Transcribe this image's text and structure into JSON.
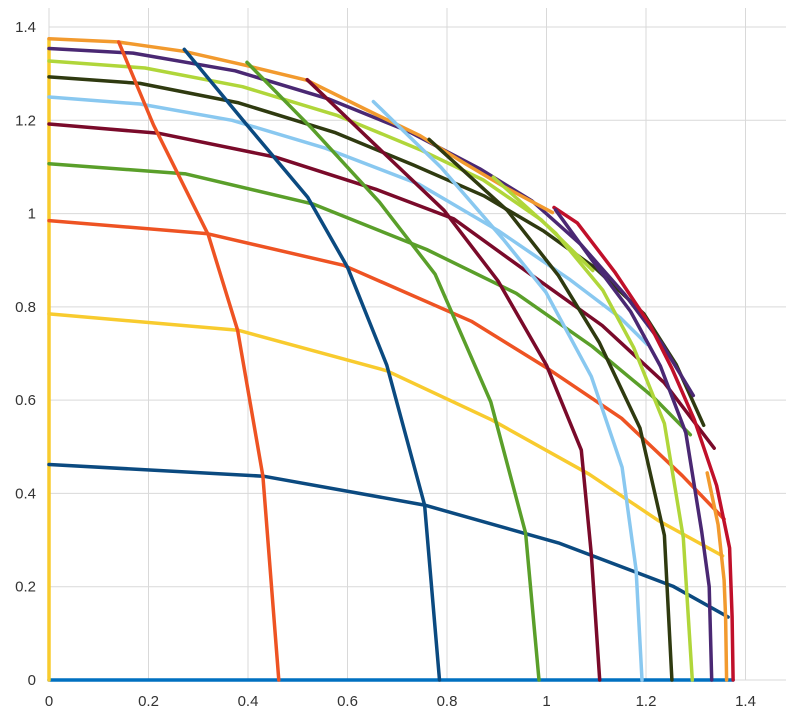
{
  "chart_data": {
    "type": "line",
    "title": "",
    "xlabel": "",
    "ylabel": "",
    "xlim": [
      0,
      1.48
    ],
    "ylim": [
      0,
      1.43
    ],
    "grid": true,
    "legend": "none",
    "x_ticks": [
      "0",
      "0.2",
      "0.4",
      "0.6",
      "0.8",
      "1",
      "1.2",
      "1.4"
    ],
    "y_ticks": [
      "0",
      "0.2",
      "0.4",
      "0.6",
      "0.8",
      "1",
      "1.2",
      "1.4"
    ],
    "series": [
      {
        "color": "#0070C0",
        "points": [
          [
            0,
            0
          ],
          [
            1.375,
            0
          ]
        ]
      },
      {
        "color": "#F8CB2E",
        "points": [
          [
            0,
            0
          ],
          [
            0,
            1.375
          ]
        ]
      },
      {
        "color": "#0B4A80",
        "points": [
          [
            0,
            0.462
          ],
          [
            0.431,
            0.437
          ],
          [
            0.755,
            0.375
          ],
          [
            1.024,
            0.294
          ],
          [
            1.254,
            0.201
          ],
          [
            1.365,
            0.135
          ]
        ]
      },
      {
        "color": "#F8CB2E",
        "points": [
          [
            0,
            0.785
          ],
          [
            0.38,
            0.75
          ],
          [
            0.679,
            0.663
          ],
          [
            0.891,
            0.557
          ],
          [
            1.086,
            0.441
          ],
          [
            1.226,
            0.341
          ],
          [
            1.354,
            0.266
          ]
        ]
      },
      {
        "color": "#EE5323",
        "points": [
          [
            0,
            0.985
          ],
          [
            0.317,
            0.957
          ],
          [
            0.592,
            0.889
          ],
          [
            0.849,
            0.769
          ],
          [
            1.002,
            0.668
          ],
          [
            1.151,
            0.561
          ],
          [
            1.273,
            0.438
          ],
          [
            1.357,
            0.345
          ]
        ]
      },
      {
        "color": "#5A9F2A",
        "points": [
          [
            0,
            1.107
          ],
          [
            0.275,
            1.085
          ],
          [
            0.532,
            1.02
          ],
          [
            0.759,
            0.923
          ],
          [
            0.939,
            0.829
          ],
          [
            1.092,
            0.715
          ],
          [
            1.213,
            0.608
          ],
          [
            1.289,
            0.526
          ]
        ]
      },
      {
        "color": "#7A0A2A",
        "points": [
          [
            0,
            1.192
          ],
          [
            0.221,
            1.172
          ],
          [
            0.455,
            1.121
          ],
          [
            0.657,
            1.052
          ],
          [
            0.813,
            0.989
          ],
          [
            0.97,
            0.868
          ],
          [
            1.112,
            0.76
          ],
          [
            1.237,
            0.637
          ],
          [
            1.337,
            0.497
          ]
        ]
      },
      {
        "color": "#89C8F0",
        "points": [
          [
            0,
            1.25
          ],
          [
            0.183,
            1.235
          ],
          [
            0.368,
            1.2
          ],
          [
            0.553,
            1.141
          ],
          [
            0.744,
            1.063
          ],
          [
            0.905,
            0.962
          ],
          [
            1.045,
            0.86
          ],
          [
            1.148,
            0.777
          ],
          [
            1.202,
            0.72
          ]
        ]
      },
      {
        "color": "#2F3A10",
        "points": [
          [
            0,
            1.293
          ],
          [
            0.183,
            1.279
          ],
          [
            0.379,
            1.238
          ],
          [
            0.574,
            1.174
          ],
          [
            0.733,
            1.104
          ],
          [
            0.874,
            1.038
          ],
          [
            0.995,
            0.962
          ],
          [
            1.098,
            0.883
          ],
          [
            1.196,
            0.785
          ],
          [
            1.261,
            0.676
          ],
          [
            1.316,
            0.546
          ]
        ]
      },
      {
        "color": "#B0D63A",
        "points": [
          [
            0,
            1.327
          ],
          [
            0.193,
            1.312
          ],
          [
            0.389,
            1.272
          ],
          [
            0.58,
            1.21
          ],
          [
            0.746,
            1.137
          ],
          [
            0.873,
            1.072
          ],
          [
            0.99,
            0.986
          ],
          [
            1.093,
            0.878
          ]
        ]
      },
      {
        "color": "#4A2873",
        "points": [
          [
            0,
            1.354
          ],
          [
            0.169,
            1.344
          ],
          [
            0.374,
            1.306
          ],
          [
            0.561,
            1.246
          ],
          [
            0.721,
            1.177
          ],
          [
            0.866,
            1.096
          ],
          [
            0.971,
            1.027
          ],
          [
            1.069,
            0.934
          ],
          [
            1.157,
            0.827
          ],
          [
            1.232,
            0.721
          ],
          [
            1.295,
            0.61
          ]
        ]
      },
      {
        "color": "#C0102A",
        "points": [
          [
            1.015,
            1.013
          ],
          [
            1.062,
            0.98
          ],
          [
            1.137,
            0.875
          ],
          [
            1.207,
            0.763
          ],
          [
            1.252,
            0.668
          ],
          [
            1.297,
            0.558
          ],
          [
            1.342,
            0.417
          ],
          [
            1.368,
            0.283
          ],
          [
            1.373,
            0.136
          ],
          [
            1.375,
            0
          ]
        ]
      },
      {
        "color": "#F29A2E",
        "points": [
          [
            0,
            1.375
          ],
          [
            0.137,
            1.368
          ],
          [
            0.271,
            1.348
          ],
          [
            0.394,
            1.318
          ],
          [
            0.518,
            1.286
          ],
          [
            0.639,
            1.222
          ],
          [
            0.746,
            1.167
          ],
          [
            0.832,
            1.11
          ],
          [
            0.914,
            1.058
          ],
          [
            1.012,
            1.002
          ]
        ]
      },
      {
        "color": "#F29A2E",
        "points": [
          [
            1.323,
            0.444
          ],
          [
            1.345,
            0.333
          ],
          [
            1.357,
            0.214
          ],
          [
            1.36,
            0.135
          ],
          [
            1.362,
            0
          ]
        ]
      },
      {
        "color": "#EE5323",
        "points": [
          [
            0.14,
            1.368
          ],
          [
            0.21,
            1.19
          ],
          [
            0.32,
            0.955
          ],
          [
            0.379,
            0.75
          ],
          [
            0.43,
            0.437
          ],
          [
            0.462,
            0
          ]
        ]
      },
      {
        "color": "#0B4A80",
        "points": [
          [
            0.272,
            1.352
          ],
          [
            0.39,
            1.2
          ],
          [
            0.52,
            1.035
          ],
          [
            0.6,
            0.885
          ],
          [
            0.679,
            0.675
          ],
          [
            0.755,
            0.375
          ],
          [
            0.785,
            0
          ]
        ]
      },
      {
        "color": "#5A9F2A",
        "points": [
          [
            0.398,
            1.324
          ],
          [
            0.527,
            1.184
          ],
          [
            0.664,
            1.025
          ],
          [
            0.776,
            0.87
          ],
          [
            0.888,
            0.596
          ],
          [
            0.958,
            0.315
          ],
          [
            0.985,
            0
          ]
        ]
      },
      {
        "color": "#7A0A2A",
        "points": [
          [
            0.519,
            1.287
          ],
          [
            0.65,
            1.153
          ],
          [
            0.794,
            1.007
          ],
          [
            0.903,
            0.855
          ],
          [
            1.0,
            0.675
          ],
          [
            1.07,
            0.493
          ],
          [
            1.09,
            0.27
          ],
          [
            1.107,
            0
          ]
        ]
      },
      {
        "color": "#89C8F0",
        "points": [
          [
            0.652,
            1.24
          ],
          [
            0.788,
            1.099
          ],
          [
            0.913,
            0.945
          ],
          [
            0.999,
            0.831
          ],
          [
            1.09,
            0.651
          ],
          [
            1.152,
            0.456
          ],
          [
            1.18,
            0.236
          ],
          [
            1.192,
            0
          ]
        ]
      },
      {
        "color": "#2F3A10",
        "points": [
          [
            0.764,
            1.159
          ],
          [
            0.921,
            1.007
          ],
          [
            1.024,
            0.867
          ],
          [
            1.106,
            0.724
          ],
          [
            1.188,
            0.54
          ],
          [
            1.237,
            0.31
          ],
          [
            1.252,
            0
          ]
        ]
      },
      {
        "color": "#B0D63A",
        "points": [
          [
            0.893,
            1.078
          ],
          [
            1.019,
            0.957
          ],
          [
            1.113,
            0.836
          ],
          [
            1.175,
            0.713
          ],
          [
            1.237,
            0.55
          ],
          [
            1.275,
            0.305
          ],
          [
            1.293,
            0
          ]
        ]
      },
      {
        "color": "#4A2873",
        "points": [
          [
            1.018,
            1.008
          ],
          [
            1.091,
            0.901
          ],
          [
            1.169,
            0.79
          ],
          [
            1.229,
            0.673
          ],
          [
            1.28,
            0.53
          ],
          [
            1.312,
            0.318
          ],
          [
            1.327,
            0.2
          ],
          [
            1.332,
            0
          ]
        ]
      }
    ]
  }
}
